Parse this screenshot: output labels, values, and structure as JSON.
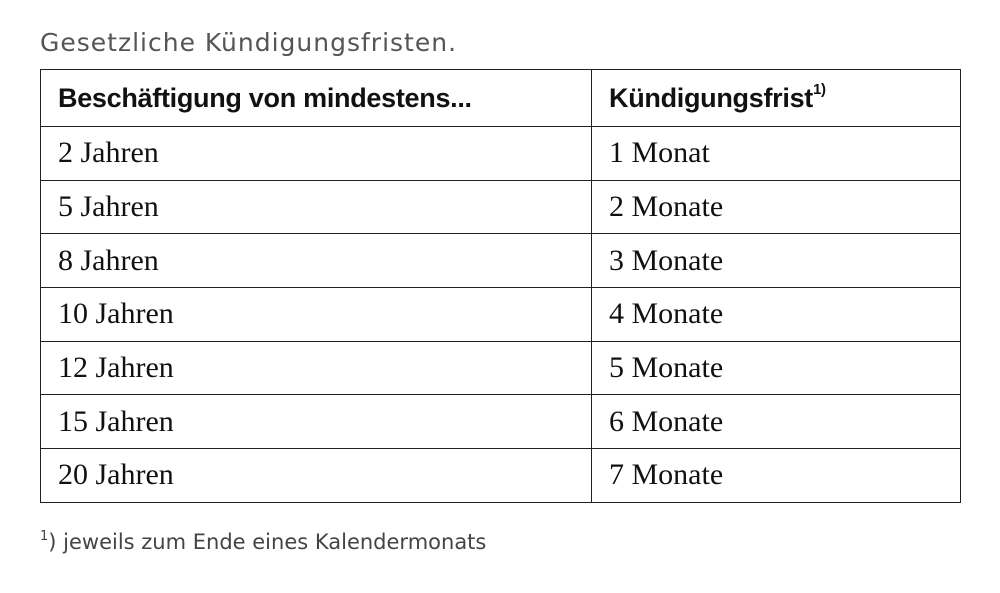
{
  "caption": "Gesetzliche Kündigungsfristen.",
  "table": {
    "headers": {
      "employment": "Beschäftigung von mindestens...",
      "notice_period": "Kündigungsfrist",
      "notice_period_marker": "1)"
    },
    "rows": [
      {
        "employment": "2 Jahren",
        "notice_period": "1 Monat"
      },
      {
        "employment": "5 Jahren",
        "notice_period": "2 Monate"
      },
      {
        "employment": "8 Jahren",
        "notice_period": "3 Monate"
      },
      {
        "employment": "10 Jahren",
        "notice_period": "4 Monate"
      },
      {
        "employment": "12 Jahren",
        "notice_period": "5 Monate"
      },
      {
        "employment": "15 Jahren",
        "notice_period": "6 Monate"
      },
      {
        "employment": "20 Jahren",
        "notice_period": "7 Monate"
      }
    ]
  },
  "footnote": {
    "marker": "1",
    "text": ") jeweils zum Ende eines Kalendermonats"
  }
}
